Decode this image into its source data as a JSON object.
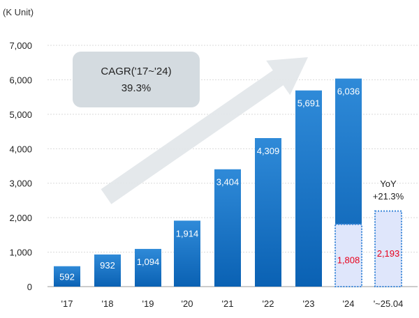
{
  "chart_data": {
    "type": "bar",
    "unit_label": "(K Unit)",
    "categories": [
      "'17",
      "'18",
      "'19",
      "'20",
      "'21",
      "'22",
      "'23",
      "'24",
      "'~25.04"
    ],
    "values": [
      592,
      932,
      1094,
      1914,
      3404,
      4309,
      5691,
      6036,
      null
    ],
    "value_labels": [
      "592",
      "932",
      "1,094",
      "1,914",
      "3,404",
      "4,309",
      "5,691",
      "6,036",
      ""
    ],
    "overlay_series": {
      "values": [
        null,
        null,
        null,
        null,
        null,
        null,
        null,
        1808,
        2193
      ],
      "value_labels": [
        "",
        "",
        "",
        "",
        "",
        "",
        "",
        "1,808",
        "2,193"
      ],
      "color": "#e8001c"
    },
    "ylim": [
      0,
      7000
    ],
    "yticks": [
      0,
      1000,
      2000,
      3000,
      4000,
      5000,
      6000,
      7000
    ],
    "ytick_labels": [
      "0",
      "1,000",
      "2,000",
      "3,000",
      "4,000",
      "5,000",
      "6,000",
      "7,000"
    ],
    "grid": true,
    "annotations": {
      "cagr_line1": "CAGR('17~'24)",
      "cagr_line2": "39.3%",
      "yoy_line1": "YoY",
      "yoy_line2": "+21.3%"
    },
    "colors": {
      "bar_top": "#2f8ad8",
      "bar_bottom": "#0a61b3",
      "overlay_fill": "#dfe6fb",
      "overlay_border": "#3a86d8",
      "grid": "#d9d9d9",
      "callout": "#d4dbe0",
      "arrow": "#e2e6e9"
    }
  }
}
